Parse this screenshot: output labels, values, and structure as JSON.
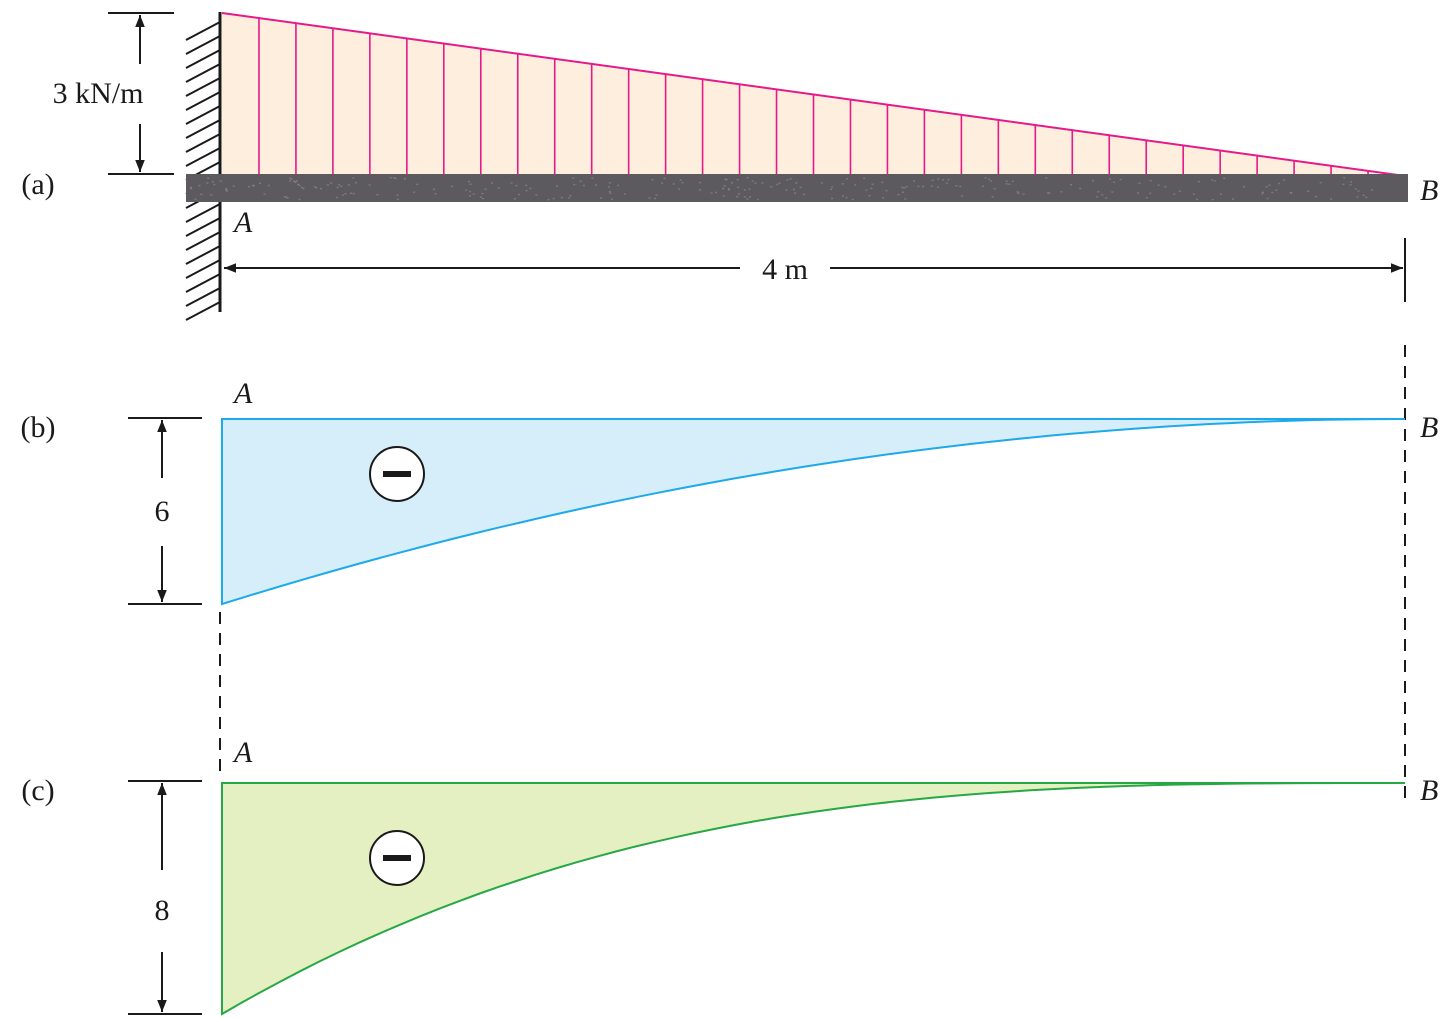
{
  "load": {
    "intensity_label": "3 kN/m",
    "span_label": "4 m",
    "max_intensity_kN_per_m": 3,
    "length_m": 4,
    "fill_color": "#fdeedd",
    "line_color": "#e6198a"
  },
  "beam": {
    "support_label": "A",
    "free_end_label": "B",
    "color": "#5d5a5f"
  },
  "panels": [
    {
      "id": "a",
      "label": "(a)"
    },
    {
      "id": "b",
      "label": "(b)",
      "left_label": "A",
      "right_label": "B",
      "magnitude_label": "6",
      "magnitude": 6,
      "sign_icon": "minus-circle-icon",
      "fill_color": "#d6eef9",
      "line_color": "#1eaaea"
    },
    {
      "id": "c",
      "label": "(c)",
      "left_label": "A",
      "right_label": "B",
      "magnitude_label": "8",
      "magnitude": 8,
      "sign_icon": "minus-circle-icon",
      "fill_color": "#e5f0c2",
      "line_color": "#27a844"
    }
  ]
}
